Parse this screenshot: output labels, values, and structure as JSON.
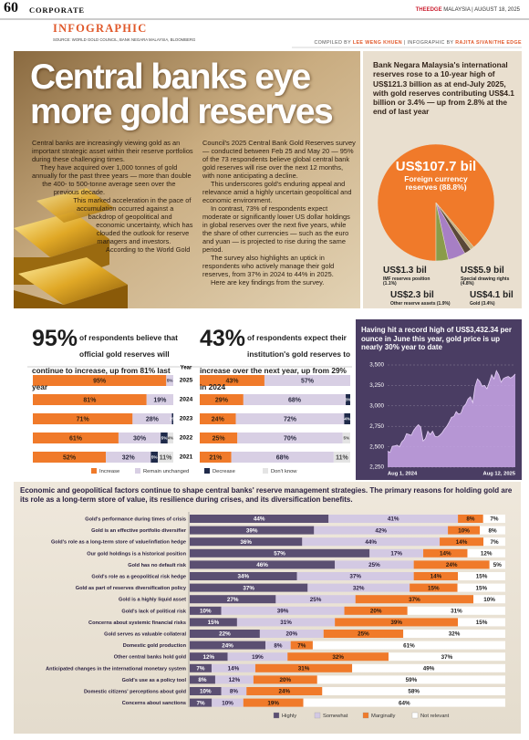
{
  "header": {
    "page": "60",
    "section": "CORPORATE",
    "kicker": "INFOGRAPHIC",
    "masthead": "THEEDGE",
    "edition": "MALAYSIA | AUGUST 18, 2025",
    "source": "SOURCE: WORLD GOLD COUNCIL, BANK NEGARA MALAYSIA, BLOOMBERG",
    "credits": [
      "COMPILED BY",
      "LEE WENG KHUEN",
      "| INFOGRAPHIC BY",
      "RAJITA SIVAN/THE EDGE"
    ]
  },
  "article": {
    "title": "Central banks eye more gold reserves",
    "column1": [
      "Central banks are increasingly viewing gold as an important strategic asset within their reserve portfolios during these challenging times.",
      "They have acquired over 1,000 tonnes of gold annually for the past three years — more than double the 400- to 500-tonne average seen over the previous decade.",
      "This marked acceleration in the pace of accumulation occurred against a backdrop of geopolitical and economic uncertainty, which has clouded the outlook for reserve managers and investors.",
      "According to the World Gold"
    ],
    "column2": [
      "Council's 2025 Central Bank Gold Reserves survey — conducted between Feb 25 and May 20 — 95% of the 73 respondents believe global central bank gold reserves will rise over the next 12 months, with none anticipating a decline.",
      "This underscores gold's enduring appeal and relevance amid a highly uncertain geopolitical and economic environment.",
      "In contrast, 73% of respondents expect moderate or significantly lower US dollar holdings in global reserves over the next five years, while the share of other currencies — such as the euro and yuan — is projected to rise during the same period.",
      "The survey also highlights an uptick in respondents who actively manage their gold reserves, from 37% in 2024 to 44% in 2025.",
      "Here are key findings from the survey."
    ]
  },
  "chart_data": [
    {
      "type": "pie",
      "title": "Bank Negara Malaysia's international reserves rose to a 10-year high of US$121.3 billion as at end-July 2025, with gold reserves contributing US$4.1 billion or 3.4% — up from 2.8% at the end of last year",
      "categories": [
        "Foreign currency reserves (88.8%)",
        "IMF reserves position (1.1%)",
        "Other reserve assets (1.9%)",
        "Special drawing rights (4.8%)",
        "Gold (3.4%)"
      ],
      "values": [
        107.7,
        1.3,
        2.3,
        5.9,
        4.1
      ],
      "value_labels": [
        "US$107.7 bil",
        "US$1.3 bil",
        "US$2.3 bil",
        "US$5.9 bil",
        "US$4.1 bil"
      ],
      "colors": [
        "#f07a2a",
        "#c8b27c",
        "#5a4838",
        "#a77fc4",
        "#8a9c4a"
      ]
    },
    {
      "type": "stacked-bar",
      "highlight": "95%",
      "title": "of respondents believe that official gold reserves will continue to increase, up from 81% last year",
      "axis_title": "Year",
      "categories": [
        "2025",
        "2024",
        "2023",
        "2022",
        "2021"
      ],
      "legend": "bottom",
      "series": [
        {
          "name": "Increase",
          "color": "#f07a2a",
          "values": [
            95,
            81,
            71,
            61,
            52
          ],
          "value_labels": [
            "95%",
            "81%",
            "71%",
            "61%",
            "52%"
          ]
        },
        {
          "name": "Remain unchanged",
          "color": "#d8cfe4",
          "values": [
            5,
            19,
            28,
            30,
            32
          ],
          "value_labels": [
            "5%",
            "19%",
            "28%",
            "30%",
            "32%"
          ]
        },
        {
          "name": "Decrease",
          "color": "#1f2a4a",
          "values": [
            null,
            null,
            1,
            5,
            5
          ],
          "value_labels": [
            null,
            null,
            "1%",
            "5%",
            "5%"
          ]
        },
        {
          "name": "Don't know",
          "color": "#e4e4e4",
          "values": [
            null,
            null,
            null,
            4,
            11
          ],
          "value_labels": [
            null,
            null,
            null,
            "4%",
            "11%"
          ]
        }
      ]
    },
    {
      "type": "stacked-bar",
      "highlight": "43%",
      "title": "of respondents expect their institution's gold reserves to increase over the next year, up from 29% in 2024",
      "series": [
        {
          "values": [
            43,
            29,
            24,
            25,
            21
          ],
          "value_labels": [
            "43%",
            "29%",
            "24%",
            "25%",
            "21%"
          ]
        },
        {
          "values": [
            57,
            68,
            72,
            70,
            68
          ],
          "value_labels": [
            "57%",
            "68%",
            "72%",
            "70%",
            "68%"
          ]
        },
        {
          "values": [
            null,
            3,
            4,
            null,
            null
          ],
          "value_labels": [
            null,
            "3%",
            "4%",
            null,
            null
          ]
        },
        {
          "values": [
            null,
            null,
            null,
            5,
            11
          ],
          "value_labels": [
            null,
            null,
            null,
            "5%",
            "11%"
          ]
        }
      ]
    },
    {
      "type": "area",
      "title": "Having hit a record high of US$3,432.34 per ounce in June this year, gold price is up nearly 30% year to date",
      "categories": [
        "Aug 1, 2024",
        null,
        null,
        null,
        null,
        null,
        null,
        null,
        null,
        null,
        null,
        null,
        null,
        null,
        null,
        null,
        null,
        null,
        null,
        null,
        null,
        null,
        null,
        null,
        null,
        null,
        null,
        null,
        null,
        null,
        null,
        null,
        null,
        null,
        null,
        null,
        null,
        null,
        null,
        null,
        null,
        null,
        null,
        null,
        null,
        null,
        null,
        null,
        null,
        null,
        null,
        null,
        null,
        null,
        "Aug 12, 2025"
      ],
      "values": [
        2445,
        2430,
        2505,
        2510,
        2520,
        2500,
        2560,
        2590,
        2660,
        2650,
        2640,
        2700,
        2740,
        2770,
        2740,
        2570,
        2600,
        2690,
        2650,
        2690,
        2630,
        2620,
        2640,
        2670,
        2715,
        2750,
        2800,
        2860,
        2870,
        2930,
        2900,
        2910,
        2990,
        3020,
        3085,
        3110,
        3040,
        3240,
        3330,
        3300,
        3240,
        3250,
        3210,
        3290,
        3380,
        3330,
        3430,
        3380,
        3290,
        3335,
        3350,
        3360,
        3340,
        3360,
        3390
      ],
      "color": "#c9a6e8",
      "ylim": [
        2250,
        3500
      ],
      "yticks": [
        {
          "value": 2250,
          "label": "2,250"
        },
        {
          "value": 2500,
          "label": "2,500"
        },
        {
          "value": 2750,
          "label": "2,750"
        },
        {
          "value": 3000,
          "label": "3,000"
        },
        {
          "value": 3250,
          "label": "3,250"
        },
        {
          "value": 3500,
          "label": "3,500"
        }
      ],
      "grid": true
    },
    {
      "type": "stacked-bar",
      "title": "Economic and geopolitical factors continue to shape central banks' reserve management strategies. The primary reasons for holding gold are its role as a long-term store of value, its resilience during crises, and its diversification benefits.",
      "legend": "bottom",
      "categories": [
        "Gold's performance during times of crisis",
        "Gold is an effective portfolio diversifier",
        "Gold's role as a long-term store of value/inflation hedge",
        "Our gold holdings is a historical position",
        "Gold has no default risk",
        "Gold's role as a geopolitical risk hedge",
        "Gold as part of reserves diversification policy",
        "Gold is a highly liquid asset",
        "Gold's lack of political risk",
        "Concerns about systemic financial risks",
        "Gold serves as valuable collateral",
        "Domestic gold production",
        "Other central banks hold gold",
        "Anticipated changes in the international monetary system",
        "Gold's use as a policy tool",
        "Domestic citizens' perceptions about gold",
        "Concerns about sanctions"
      ],
      "series": [
        {
          "name": "Highly",
          "color": "#5b4f72",
          "values": [
            44,
            39,
            36,
            57,
            46,
            34,
            37,
            27,
            10,
            15,
            22,
            24,
            12,
            7,
            8,
            10,
            7
          ],
          "value_labels": [
            "44%",
            "39%",
            "36%",
            "57%",
            "46%",
            "34%",
            "37%",
            "27%",
            "10%",
            "15%",
            "22%",
            "24%",
            "12%",
            "7%",
            "8%",
            "10%",
            "7%"
          ]
        },
        {
          "name": "Somewhat",
          "color": "#d3c9e3",
          "values": [
            41,
            42,
            44,
            17,
            25,
            37,
            32,
            25,
            39,
            31,
            20,
            8,
            19,
            14,
            12,
            8,
            10
          ],
          "value_labels": [
            "41%",
            "42%",
            "44%",
            "17%",
            "25%",
            "37%",
            "32%",
            "25%",
            "39%",
            "31%",
            "20%",
            "8%",
            "19%",
            "14%",
            "12%",
            "8%",
            "10%"
          ]
        },
        {
          "name": "Marginally",
          "color": "#f07a2a",
          "values": [
            8,
            10,
            14,
            14,
            24,
            14,
            15,
            37,
            20,
            39,
            25,
            7,
            32,
            31,
            20,
            24,
            19
          ],
          "value_labels": [
            "8%",
            "10%",
            "14%",
            "14%",
            "24%",
            "14%",
            "15%",
            "37%",
            "20%",
            "39%",
            "25%",
            "7%",
            "32%",
            "31%",
            "20%",
            "24%",
            "19%"
          ]
        },
        {
          "name": "Not relevant",
          "color": "#ffffff",
          "values": [
            7,
            8,
            7,
            12,
            5,
            15,
            15,
            10,
            31,
            15,
            32,
            61,
            37,
            49,
            59,
            58,
            64
          ],
          "value_labels": [
            "7%",
            "8%",
            "7%",
            "12%",
            "5%",
            "15%",
            "15%",
            "10%",
            "31%",
            "15%",
            "32%",
            "61%",
            "37%",
            "49%",
            "59%",
            "58%",
            "64%"
          ]
        }
      ]
    }
  ]
}
